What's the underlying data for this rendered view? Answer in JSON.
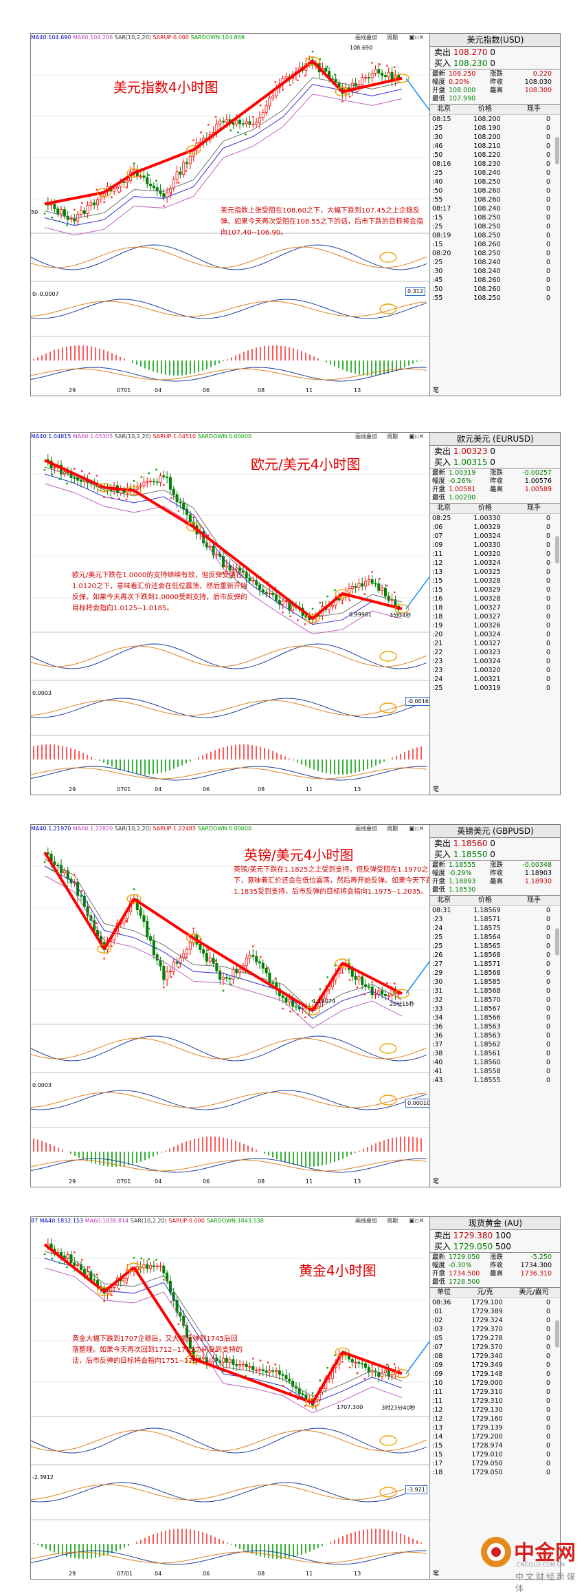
{
  "panels": [
    {
      "id": "dxy",
      "legend": {
        "ma40": "MA40:104.690",
        "ma60": "MA60:104.206",
        "sar": "SAR(10,2,20)",
        "sarup": "SARUP:0.000",
        "sardown": "SARDOWN:104.869"
      },
      "btn1": "画线叠加",
      "btn2": "周期",
      "title": "美元指数4小时图",
      "note": "美元指数上张受阻在108.60之下，大幅下跌到107.45之上企稳反弹。如果今天再次受阻在108.55之下的话，后市下跌的目标将会指向107.40--106.90。",
      "axis_dates": [
        "29",
        "0701",
        "04",
        "06",
        "08",
        "11",
        "13"
      ],
      "top_price_label": "108.690",
      "low_price_label": "50",
      "osc_label": "0:-0.0007",
      "box_label": "0.312",
      "side": {
        "title": "美元指数(USD)",
        "sell_label": "卖出",
        "sell_price": "108.270",
        "sell_vol": "0",
        "buy_label": "买入",
        "buy_price": "108.230",
        "buy_vol": "0",
        "stats": [
          {
            "k": "最新",
            "v": "108.250",
            "k2": "涨跌",
            "v2": "0.220",
            "c1": "red",
            "c2": "red"
          },
          {
            "k": "幅度",
            "v": "0.20%",
            "k2": "昨收",
            "v2": "108.030",
            "c1": "red",
            "c2": ""
          },
          {
            "k": "开盘",
            "v": "108.000",
            "k2": "最高",
            "v2": "108.300",
            "c1": "green",
            "c2": "red"
          },
          {
            "k": "最低",
            "v": "107.990",
            "k2": "",
            "v2": "",
            "c1": "green",
            "c2": ""
          }
        ],
        "thead": [
          "北京",
          "价格",
          "现手"
        ],
        "ticks": [
          [
            "08:15",
            "108.200",
            "0"
          ],
          [
            ":25",
            "108.190",
            "0"
          ],
          [
            ":30",
            "108.200",
            "0"
          ],
          [
            ":46",
            "108.210",
            "0"
          ],
          [
            ":50",
            "108.220",
            "0"
          ],
          [
            "08:16",
            "108.230",
            "0"
          ],
          [
            ":25",
            "108.240",
            "0"
          ],
          [
            ":40",
            "108.250",
            "0"
          ],
          [
            ":50",
            "108.260",
            "0"
          ],
          [
            ":55",
            "108.260",
            "0"
          ],
          [
            "08:17",
            "108.240",
            "0"
          ],
          [
            ":15",
            "108.250",
            "0"
          ],
          [
            ":25",
            "108.250",
            "0"
          ],
          [
            "08:19",
            "108.250",
            "0"
          ],
          [
            ":15",
            "108.260",
            "0"
          ],
          [
            "08:20",
            "108.250",
            "0"
          ],
          [
            ":25",
            "108.240",
            "0"
          ],
          [
            ":30",
            "108.240",
            "0"
          ],
          [
            ":45",
            "108.260",
            "0"
          ],
          [
            ":50",
            "108.260",
            "0"
          ],
          [
            ":55",
            "108.250",
            "0"
          ]
        ],
        "footer": "笔"
      }
    },
    {
      "id": "eurusd",
      "legend": {
        "ma40": "MA40:1.04815",
        "ma60": "MA60:1.05305",
        "sar": "SAR(10,2,20)",
        "sarup": "SARUP:1.04510",
        "sardown": "SARDOWN:0.00000"
      },
      "btn1": "画线叠加",
      "btn2": "周期",
      "title": "欧元/美元4小时图",
      "note": "欧元/美元下跌在1.0000的支持继续有效，但反弹受阻在1.0120之下，意味着汇价还会在低位震荡，然后重新开始反弹。如果今天再次下跌到1.0000受到支持，后市反弹的目标将会指向1.0125--1.0185。",
      "axis_dates": [
        "29",
        "0701",
        "04",
        "06",
        "08",
        "11",
        "13"
      ],
      "top_price_label": "",
      "low_price_label": "0.99981",
      "countdown": "3分34秒",
      "osc_label": "0.0003",
      "box_label": "-0.00168",
      "side": {
        "title": "欧元美元 (EURUSD)",
        "sell_label": "卖出",
        "sell_price": "1.00323",
        "sell_vol": "0",
        "buy_label": "买入",
        "buy_price": "1.00315",
        "buy_vol": "0",
        "stats": [
          {
            "k": "最新",
            "v": "1.00319",
            "k2": "涨跌",
            "v2": "-0.00257",
            "c1": "green",
            "c2": "green"
          },
          {
            "k": "幅度",
            "v": "-0.26%",
            "k2": "昨收",
            "v2": "1.00576",
            "c1": "green",
            "c2": ""
          },
          {
            "k": "开盘",
            "v": "1.00581",
            "k2": "最高",
            "v2": "1.00589",
            "c1": "red",
            "c2": "red"
          },
          {
            "k": "最低",
            "v": "1.00290",
            "k2": "",
            "v2": "",
            "c1": "green",
            "c2": ""
          }
        ],
        "thead": [
          "北京",
          "价格",
          "现手"
        ],
        "ticks": [
          [
            "08:25",
            "1.00330",
            "0"
          ],
          [
            ":06",
            "1.00329",
            "0"
          ],
          [
            ":07",
            "1.00324",
            "0"
          ],
          [
            ":09",
            "1.00330",
            "0"
          ],
          [
            ":11",
            "1.00320",
            "0"
          ],
          [
            ":12",
            "1.00324",
            "0"
          ],
          [
            ":13",
            "1.00325",
            "0"
          ],
          [
            ":15",
            "1.00328",
            "0"
          ],
          [
            ":15",
            "1.00329",
            "0"
          ],
          [
            ":16",
            "1.00328",
            "0"
          ],
          [
            ":18",
            "1.00327",
            "0"
          ],
          [
            ":18",
            "1.00327",
            "0"
          ],
          [
            ":19",
            "1.00326",
            "0"
          ],
          [
            ":20",
            "1.00324",
            "0"
          ],
          [
            ":21",
            "1.00327",
            "0"
          ],
          [
            ":22",
            "1.00323",
            "0"
          ],
          [
            ":23",
            "1.00324",
            "0"
          ],
          [
            ":23",
            "1.00320",
            "0"
          ],
          [
            ":24",
            "1.00321",
            "0"
          ],
          [
            ":25",
            "1.00319",
            "0"
          ]
        ],
        "footer": "笔"
      }
    },
    {
      "id": "gbpusd",
      "legend": {
        "ma40": "MA40:1.21970",
        "ma60": "MA60:1.22820",
        "sar": "SAR(10,2,20)",
        "sarup": "SARUP:1.22483",
        "sardown": "SARDOWN:0.00000"
      },
      "btn1": "画线叠加",
      "btn2": "周期",
      "title": "英镑/美元4小时图",
      "note": "英镑/美元下跌在1.1825之上受到支持，但反弹受阻在1.1970之下，意味着汇价还会在低位震荡，然后再开始反弹。如果今天下跌到1.1835受到支持，后市反弹的目标将会指向1.1975--1.2035。",
      "axis_dates": [
        "29",
        "0701",
        "04",
        "06",
        "08",
        "11",
        "13"
      ],
      "top_price_label": "",
      "low_price_label": "1.18074",
      "countdown": "20分15秒",
      "osc_label": "0.0003",
      "box_label": "0.00010",
      "side": {
        "title": "英镑美元 (GBPUSD)",
        "sell_label": "卖出",
        "sell_price": "1.18560",
        "sell_vol": "0",
        "buy_label": "买入",
        "buy_price": "1.18550",
        "buy_vol": "0",
        "stats": [
          {
            "k": "最新",
            "v": "1.18555",
            "k2": "涨跌",
            "v2": "-0.00348",
            "c1": "green",
            "c2": "green"
          },
          {
            "k": "幅度",
            "v": "-0.29%",
            "k2": "昨收",
            "v2": "1.18903",
            "c1": "green",
            "c2": ""
          },
          {
            "k": "开盘",
            "v": "1.18893",
            "k2": "最高",
            "v2": "1.18930",
            "c1": "green",
            "c2": "red"
          },
          {
            "k": "最低",
            "v": "1.18530",
            "k2": "",
            "v2": "",
            "c1": "green",
            "c2": ""
          }
        ],
        "thead": [
          "北京",
          "价格",
          "现手"
        ],
        "ticks": [
          [
            "08:31",
            "1.18569",
            "0"
          ],
          [
            ":23",
            "1.18571",
            "0"
          ],
          [
            ":24",
            "1.18575",
            "0"
          ],
          [
            ":25",
            "1.18564",
            "0"
          ],
          [
            ":25",
            "1.18565",
            "0"
          ],
          [
            ":26",
            "1.18568",
            "0"
          ],
          [
            ":27",
            "1.18571",
            "0"
          ],
          [
            ":29",
            "1.18568",
            "0"
          ],
          [
            ":30",
            "1.18585",
            "0"
          ],
          [
            ":31",
            "1.18568",
            "0"
          ],
          [
            ":32",
            "1.18570",
            "0"
          ],
          [
            ":33",
            "1.18567",
            "0"
          ],
          [
            ":34",
            "1.18566",
            "0"
          ],
          [
            ":36",
            "1.18563",
            "0"
          ],
          [
            ":36",
            "1.18563",
            "0"
          ],
          [
            ":37",
            "1.18562",
            "0"
          ],
          [
            ":38",
            "1.18561",
            "0"
          ],
          [
            ":40",
            "1.18560",
            "0"
          ],
          [
            ":41",
            "1.18558",
            "0"
          ],
          [
            ":43",
            "1.18555",
            "0"
          ]
        ],
        "footer": "笔"
      }
    },
    {
      "id": "gold",
      "legend": {
        "ma40": "87 MA40:1832.153",
        "ma60": "MA60:1838.814",
        "sar": "SAR(10,2,20)",
        "sarup": "SARUP:0.000",
        "sardown": "SARDOWN:1843.538"
      },
      "btn1": "画线叠加",
      "btn2": "周期",
      "title": "黄金4小时图",
      "note": "黄金大幅下跌到1707企稳后，又大幅反弹到1745后回落整理。如果今天再次回到1712--1713之间受到支持的话，后市反弹的目标将会指向1751--1767。",
      "axis_dates": [
        "29",
        "07/01",
        "04",
        "06",
        "08",
        "11",
        "13"
      ],
      "top_price_label": "",
      "low_price_label": "1707.300",
      "countdown": "3时23分40秒",
      "osc_label": "-2.3912",
      "box_label": "-3.921",
      "side": {
        "title": "现货黄金 (AU)",
        "sell_label": "卖出",
        "sell_price": "1729.380",
        "sell_vol": "100",
        "buy_label": "买入",
        "buy_price": "1729.050",
        "buy_vol": "500",
        "stats": [
          {
            "k": "最新",
            "v": "1729.050",
            "k2": "涨跌",
            "v2": "-5.250",
            "c1": "green",
            "c2": "green"
          },
          {
            "k": "幅度",
            "v": "-0.30%",
            "k2": "昨收",
            "v2": "1734.300",
            "c1": "green",
            "c2": ""
          },
          {
            "k": "开盘",
            "v": "1734.500",
            "k2": "最高",
            "v2": "1736.310",
            "c1": "red",
            "c2": "red"
          },
          {
            "k": "最低",
            "v": "1728.500",
            "k2": "",
            "v2": "",
            "c1": "green",
            "c2": ""
          }
        ],
        "thead": [
          "单位",
          "元/克",
          "美元/盎司"
        ],
        "ticks": [
          [
            "08:36",
            "1729.100",
            "0"
          ],
          [
            ":01",
            "1729.389",
            "0"
          ],
          [
            ":02",
            "1729.324",
            "0"
          ],
          [
            ":03",
            "1729.370",
            "0"
          ],
          [
            ":05",
            "1729.278",
            "0"
          ],
          [
            ":07",
            "1729.370",
            "0"
          ],
          [
            ":08",
            "1729.340",
            "0"
          ],
          [
            ":09",
            "1729.349",
            "0"
          ],
          [
            ":09",
            "1729.148",
            "0"
          ],
          [
            ":10",
            "1729.000",
            "0"
          ],
          [
            ":11",
            "1729.310",
            "0"
          ],
          [
            ":11",
            "1729.310",
            "0"
          ],
          [
            ":12",
            "1729.130",
            "0"
          ],
          [
            ":12",
            "1729.160",
            "0"
          ],
          [
            ":13",
            "1729.139",
            "0"
          ],
          [
            ":14",
            "1729.200",
            "0"
          ],
          [
            ":15",
            "1728.974",
            "0"
          ],
          [
            ":15",
            "1729.010",
            "0"
          ],
          [
            ":17",
            "1729.050",
            "0"
          ],
          [
            ":18",
            "1729.050",
            "0"
          ]
        ],
        "footer": "笔"
      }
    }
  ],
  "logo": {
    "name": "中金网",
    "url": "CNGOLD.COM.CN",
    "sub": "中文财经新媒体"
  },
  "colors": {
    "arrow": "#ff0000",
    "highlight": "#f0a000",
    "blue_arrow": "#1e90ff",
    "candle_up": "#ff0000",
    "candle_down": "#008000"
  },
  "chart_data": [
    {
      "type": "line",
      "title": "美元指数4小时图",
      "xlabel": "",
      "ylabel": "",
      "x_ticks": [
        "29",
        "0701",
        "04",
        "06",
        "08",
        "11",
        "13"
      ],
      "series": [
        {
          "values": [
            105.0,
            104.6,
            105.3,
            105.8,
            105.2,
            106.4,
            107.2,
            107.0,
            108.2,
            108.69,
            107.9,
            108.4,
            108.25
          ]
        }
      ]
    },
    {
      "type": "line",
      "title": "欧元/美元4小时图",
      "xlabel": "",
      "ylabel": "",
      "x_ticks": [
        "29",
        "0701",
        "04",
        "06",
        "08",
        "11",
        "13"
      ],
      "series": [
        {
          "values": [
            1.052,
            1.046,
            1.043,
            1.042,
            1.047,
            1.03,
            1.018,
            1.012,
            1.005,
            0.99981,
            1.008,
            1.012,
            1.003
          ]
        }
      ]
    },
    {
      "type": "line",
      "title": "英镑/美元4小时图",
      "xlabel": "",
      "ylabel": "",
      "x_ticks": [
        "29",
        "0701",
        "04",
        "06",
        "08",
        "11",
        "13"
      ],
      "series": [
        {
          "values": [
            1.225,
            1.216,
            1.198,
            1.212,
            1.19,
            1.201,
            1.189,
            1.196,
            1.184,
            1.18074,
            1.194,
            1.186,
            1.1855
          ]
        }
      ]
    },
    {
      "type": "line",
      "title": "黄金4小时图",
      "xlabel": "",
      "ylabel": "",
      "x_ticks": [
        "29",
        "07/01",
        "04",
        "06",
        "08",
        "11",
        "13"
      ],
      "series": [
        {
          "values": [
            1825,
            1812,
            1790,
            1808,
            1806,
            1740,
            1738,
            1733,
            1727,
            1707.3,
            1745,
            1728,
            1729
          ]
        }
      ]
    }
  ]
}
